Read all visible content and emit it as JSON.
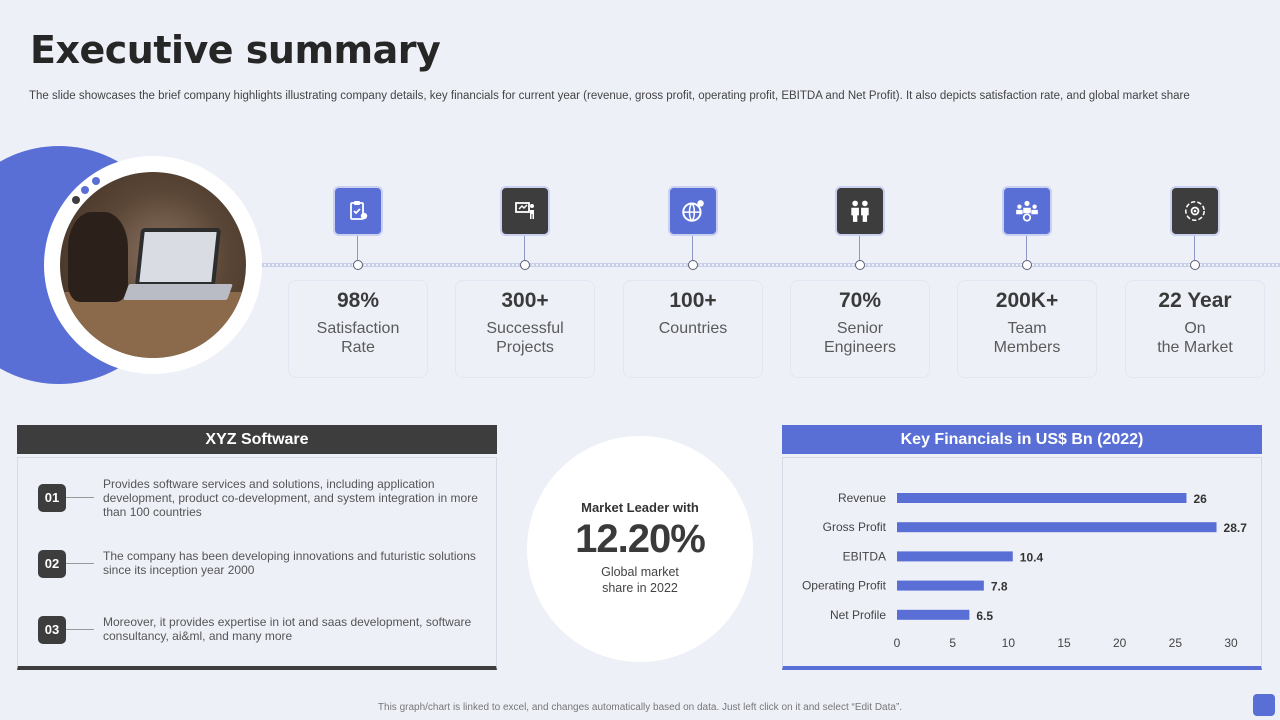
{
  "page": {
    "title": "Executive summary",
    "subtitle": "The slide showcases the brief company highlights illustrating company details, key financials for current year (revenue, gross profit, operating profit, EBITDA and Net Profit). It also depicts satisfaction rate, and global market share",
    "footer": "This graph/chart is linked to excel, and changes automatically based on data. Just left click on it and select “Edit Data”."
  },
  "colors": {
    "accent": "#5a6fd6",
    "dark": "#3d3d3d",
    "background": "#eef0f8"
  },
  "stats": [
    {
      "value": "98%",
      "label": "Satisfaction\nRate",
      "icon": "clipboard-check-icon",
      "style": "blue"
    },
    {
      "value": "300+",
      "label": "Successful\nProjects",
      "icon": "presentation-icon",
      "style": "dark"
    },
    {
      "value": "100+",
      "label": "Countries",
      "icon": "globe-icon",
      "style": "blue"
    },
    {
      "value": "70%",
      "label": "Senior\nEngineers",
      "icon": "engineers-icon",
      "style": "dark"
    },
    {
      "value": "200K+",
      "label": "Team\nMembers",
      "icon": "team-icon",
      "style": "blue"
    },
    {
      "value": "22 Year",
      "label": "On\nthe Market",
      "icon": "market-icon",
      "style": "dark"
    }
  ],
  "xyz": {
    "title": "XYZ Software",
    "items": [
      {
        "num": "01",
        "text": "Provides software services and solutions, including application development, product co-development, and system integration in more than 100 countries"
      },
      {
        "num": "02",
        "text": "The company has been developing innovations and futuristic solutions since its inception year 2000"
      },
      {
        "num": "03",
        "text": "Moreover, it provides expertise in iot and saas development, software consultancy, ai&ml, and many more"
      }
    ]
  },
  "market": {
    "title": "Market Leader with",
    "value": "12.20%",
    "desc": "Global market\nshare in 2022"
  },
  "financials": {
    "title": "Key Financials in US$ Bn (2022)"
  },
  "chart_data": {
    "type": "bar",
    "orientation": "horizontal",
    "categories": [
      "Revenue",
      "Gross Profit",
      "EBITDA",
      "Operating Profit",
      "Net Profile"
    ],
    "values": [
      26,
      28.7,
      10.4,
      7.8,
      6.5
    ],
    "value_labels": [
      "26",
      "28.7",
      "10.4",
      "7.8",
      "6.5"
    ],
    "xlim": [
      0,
      30
    ],
    "xticks": [
      0,
      5,
      10,
      15,
      20,
      25,
      30
    ],
    "bar_color": "#5a6fd6",
    "grid": false
  }
}
